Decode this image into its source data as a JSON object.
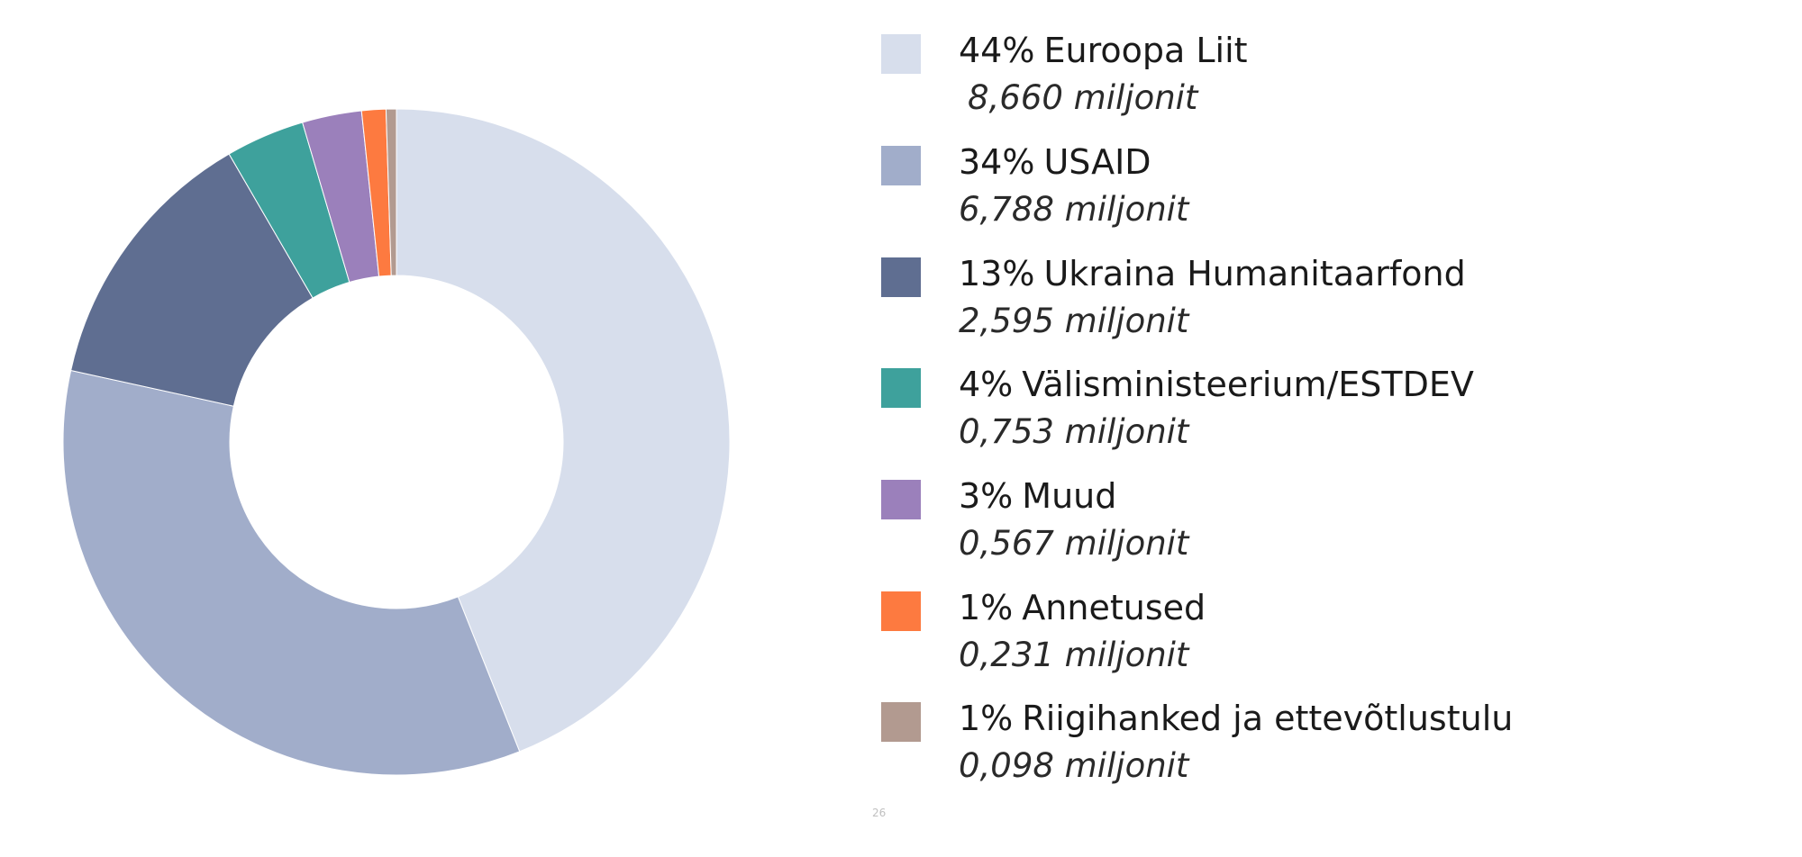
{
  "chart_data": {
    "type": "pie",
    "series": [
      {
        "percent_label": "44%",
        "name": "Euroopa Liit",
        "value": 8.66,
        "value_label": "8,660 miljonit",
        "color": "#d7deec"
      },
      {
        "percent_label": "34%",
        "name": "USAID",
        "value": 6.788,
        "value_label": "6,788 miljonit",
        "color": "#a1adca"
      },
      {
        "percent_label": "13%",
        "name": "Ukraina Humanitaarfond",
        "value": 2.595,
        "value_label": "2,595 miljonit",
        "color": "#5f6e91"
      },
      {
        "percent_label": "4%",
        "name": "Välisministeerium/ESTDEV",
        "value": 0.753,
        "value_label": "0,753 miljonit",
        "color": "#3ea19c"
      },
      {
        "percent_label": "3%",
        "name": "Muud",
        "value": 0.567,
        "value_label": "0,567 miljonit",
        "color": "#9b80bb"
      },
      {
        "percent_label": "1%",
        "name": "Annetused",
        "value": 0.231,
        "value_label": "0,231 miljonit",
        "color": "#fd7a40"
      },
      {
        "percent_label": "1%",
        "name": "Riigihanked ja ettevõtlustulu",
        "value": 0.098,
        "value_label": "0,098 miljonit",
        "color": "#b29a90"
      }
    ],
    "donut": true,
    "start_angle": "12 o'clock",
    "direction": "clockwise",
    "legend_position": "right"
  },
  "page_number": "26"
}
